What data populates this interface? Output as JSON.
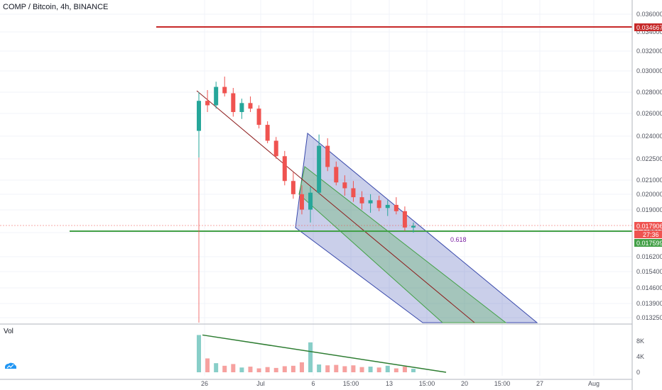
{
  "header": {
    "title": "COMP / Bitcoin, 4h, BINANCE"
  },
  "volume_pane": {
    "label": "Vol",
    "tick_labels": [
      "8K",
      "4K",
      "0"
    ]
  },
  "annotation": {
    "fib_label": "0.618"
  },
  "price_tags": {
    "resistance": "0.034667",
    "current": "0.017906",
    "countdown": "27:36",
    "support": "0.017599"
  },
  "colors": {
    "up": "#26a69a",
    "down": "#ef5350",
    "resistance": "#c62828",
    "support": "#43a047",
    "channel_outer": "#3949ab",
    "channel_inner": "#43a047",
    "channel_mid": "#8d1c1c",
    "trendline": "#2e7d32",
    "annotation": "#7b1fa2",
    "brand": "#2196f3"
  },
  "icons": {
    "brand": "tradingview-logo-icon"
  },
  "chart_data": {
    "type": "candlestick",
    "symbol": "COMP / Bitcoin",
    "interval": "4h",
    "exchange": "BINANCE",
    "x_tick_labels": [
      "26",
      "Jul",
      "6",
      "15:00",
      "13",
      "15:00",
      "20",
      "15:00",
      "27",
      "Aug"
    ],
    "y_tick_labels": [
      "0.036000",
      "0.034000",
      "0.032000",
      "0.030000",
      "0.028000",
      "0.026000",
      "0.024000",
      "0.022500",
      "0.021000",
      "0.020000",
      "0.019000",
      "0.017500",
      "0.016200",
      "0.015400",
      "0.014600",
      "0.013900",
      "0.013250"
    ],
    "y_scale": "log",
    "horizontal_lines": [
      {
        "name": "resistance",
        "value": 0.034667
      },
      {
        "name": "support",
        "value": 0.017599
      }
    ],
    "current_price": 0.017906,
    "series_ohlc_approx": [
      [
        0.0246,
        0.028,
        0.0225,
        0.0272
      ],
      [
        0.0272,
        0.0282,
        0.0262,
        0.0268
      ],
      [
        0.0268,
        0.029,
        0.0265,
        0.0285
      ],
      [
        0.0285,
        0.0295,
        0.0276,
        0.0279
      ],
      [
        0.0279,
        0.0284,
        0.0258,
        0.0262
      ],
      [
        0.0262,
        0.0274,
        0.0256,
        0.027
      ],
      [
        0.027,
        0.0276,
        0.0262,
        0.0265
      ],
      [
        0.0265,
        0.0268,
        0.0248,
        0.0251
      ],
      [
        0.0251,
        0.0254,
        0.0236,
        0.0238
      ],
      [
        0.0238,
        0.0241,
        0.0224,
        0.0226
      ],
      [
        0.0226,
        0.023,
        0.0205,
        0.0208
      ],
      [
        0.0208,
        0.0214,
        0.0196,
        0.0199
      ],
      [
        0.0199,
        0.0205,
        0.0186,
        0.0189
      ],
      [
        0.0189,
        0.0204,
        0.0181,
        0.02
      ],
      [
        0.02,
        0.0243,
        0.0199,
        0.0234
      ],
      [
        0.0234,
        0.024,
        0.0215,
        0.0218
      ],
      [
        0.0218,
        0.0222,
        0.0205,
        0.0207
      ],
      [
        0.0207,
        0.0212,
        0.0198,
        0.0203
      ],
      [
        0.0203,
        0.0208,
        0.0194,
        0.0197
      ],
      [
        0.0197,
        0.0201,
        0.0189,
        0.0193
      ],
      [
        0.0193,
        0.0199,
        0.0187,
        0.0195
      ],
      [
        0.0195,
        0.0198,
        0.0188,
        0.019
      ],
      [
        0.019,
        0.0195,
        0.0185,
        0.0192
      ],
      [
        0.0192,
        0.0197,
        0.0186,
        0.0188
      ],
      [
        0.0188,
        0.0191,
        0.0176,
        0.0178
      ],
      [
        0.0178,
        0.0181,
        0.0175,
        0.0179
      ]
    ],
    "volume_approx": [
      8600,
      3200,
      2100,
      1500,
      1900,
      1100,
      1300,
      900,
      1200,
      1000,
      1400,
      1500,
      2300,
      6900,
      1800,
      1600,
      1700,
      1400,
      1600,
      1200,
      1300,
      1100,
      1500,
      900,
      1300,
      800
    ],
    "volume_ylim": [
      0,
      9000
    ],
    "volume_trendline": [
      8600,
      0
    ],
    "annotations": [
      "0.618"
    ],
    "grid": true,
    "legend": "none"
  }
}
